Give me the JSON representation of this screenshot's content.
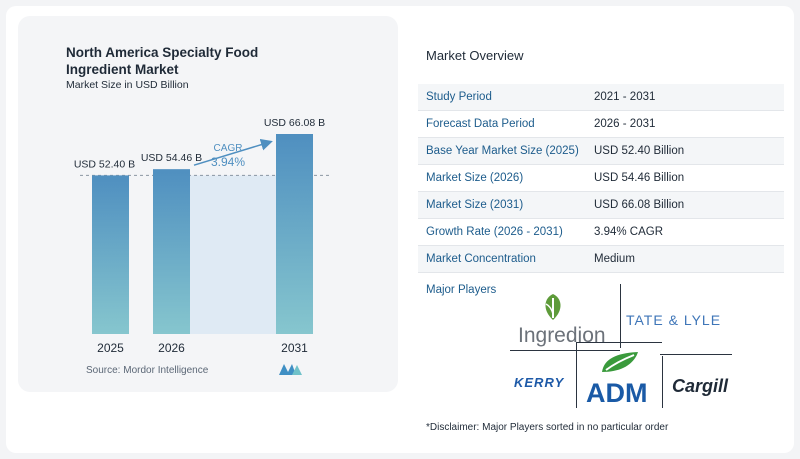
{
  "chart_data": {
    "type": "bar",
    "title": "North America Specialty Food Ingredient Market",
    "subtitle": "Market Size in USD Billion",
    "categories": [
      "2025",
      "2026",
      "2031"
    ],
    "values": [
      52.4,
      54.46,
      66.08
    ],
    "data_labels": [
      "USD 52.40 B",
      "USD 54.46 B",
      "USD 66.08 B"
    ],
    "cagr_label": "CAGR",
    "cagr_value": "3.94%",
    "ylim": [
      0,
      70
    ],
    "grid": false,
    "colors": {
      "bar_top": "#4f8fc0",
      "bar_bottom": "#86c6ce",
      "cagr": "#4f8fc0",
      "band": "#d6e6f2"
    }
  },
  "source": "Source:  Mordor Intelligence",
  "overview": {
    "title": "Market Overview",
    "rows": [
      {
        "label": "Study Period",
        "value": "2021 - 2031"
      },
      {
        "label": "Forecast Data Period",
        "value": "2026 - 2031"
      },
      {
        "label": "Base Year Market Size (2025)",
        "value": "USD 52.40 Billion"
      },
      {
        "label": "Market Size (2026)",
        "value": "USD 54.46 Billion"
      },
      {
        "label": "Market Size (2031)",
        "value": "USD 66.08 Billion"
      },
      {
        "label": "Growth Rate (2026 - 2031)",
        "value": "3.94% CAGR"
      },
      {
        "label": "Market Concentration",
        "value": "Medium"
      }
    ]
  },
  "players": {
    "label": "Major Players",
    "logos": [
      "Ingredion",
      "TATE & LYLE",
      "KERRY",
      "ADM",
      "Cargill"
    ]
  },
  "disclaimer": "*Disclaimer: Major Players sorted in no particular order"
}
